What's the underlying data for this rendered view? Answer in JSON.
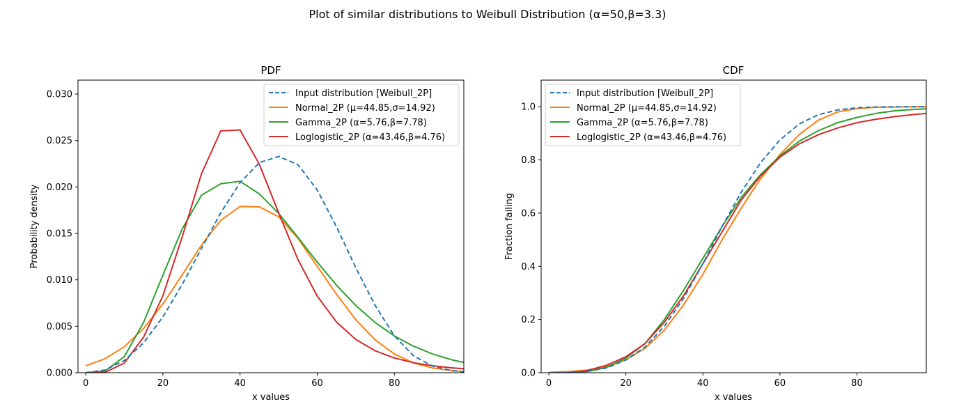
{
  "figure": {
    "suptitle": "Plot of similar distributions to Weibull Distribution (α=50,β=3.3)"
  },
  "series_styles": [
    {
      "color": "#1f77b4",
      "dash": "dashed"
    },
    {
      "color": "#ff7f0e",
      "dash": "solid"
    },
    {
      "color": "#2ca02c",
      "dash": "solid"
    },
    {
      "color": "#d62728",
      "dash": "solid"
    }
  ],
  "chart_data": [
    {
      "type": "line",
      "title": "PDF",
      "xlabel": "x values",
      "ylabel": "Probability density",
      "xlim": [
        -2,
        98
      ],
      "ylim": [
        0,
        0.0315
      ],
      "xticks": [
        "0",
        "20",
        "40",
        "60",
        "80"
      ],
      "xtick_values": [
        0,
        20,
        40,
        60,
        80
      ],
      "yticks": [
        "0.000",
        "0.005",
        "0.010",
        "0.015",
        "0.020",
        "0.025",
        "0.030"
      ],
      "ytick_values": [
        0,
        0.005,
        0.01,
        0.015,
        0.02,
        0.025,
        0.03
      ],
      "grid": false,
      "legend_position": "top-right",
      "x": [
        0,
        5,
        10,
        15,
        20,
        25,
        30,
        35,
        40,
        45,
        50,
        55,
        60,
        65,
        70,
        75,
        80,
        85,
        90,
        95,
        98
      ],
      "series": [
        {
          "name": "Input distribution [Weibull_2P]",
          "values": [
            0.0,
            0.00029,
            0.00131,
            0.00321,
            0.00601,
            0.0095,
            0.01338,
            0.01721,
            0.02046,
            0.02261,
            0.02328,
            0.0224,
            0.01968,
            0.0157,
            0.0113,
            0.00725,
            0.00397,
            0.0018,
            0.0007,
            0.00022,
            0.0001
          ]
        },
        {
          "name": "Normal_2P (μ=44.85,σ=14.92)",
          "values": [
            0.00074,
            0.00151,
            0.0028,
            0.00476,
            0.0074,
            0.01053,
            0.01373,
            0.0164,
            0.0179,
            0.01785,
            0.0168,
            0.01447,
            0.01145,
            0.00845,
            0.00571,
            0.00354,
            0.00202,
            0.00105,
            0.0005,
            0.00022,
            0.00012
          ]
        },
        {
          "name": "Gamma_2P (α=5.76,β=7.78)",
          "values": [
            0.0,
            0.00018,
            0.00173,
            0.00542,
            0.01051,
            0.01548,
            0.01911,
            0.02035,
            0.0206,
            0.01925,
            0.01715,
            0.01458,
            0.01191,
            0.00942,
            0.00724,
            0.00541,
            0.00396,
            0.00284,
            0.002,
            0.00138,
            0.0011
          ]
        },
        {
          "name": "Loglogistic_2P (α=43.46,β=4.76)",
          "values": [
            0.0,
            4e-05,
            0.00104,
            0.00383,
            0.00829,
            0.01462,
            0.02141,
            0.02603,
            0.02614,
            0.02243,
            0.01721,
            0.01219,
            0.00825,
            0.00546,
            0.00358,
            0.00236,
            0.00158,
            0.00107,
            0.00074,
            0.00052,
            0.00043
          ]
        }
      ]
    },
    {
      "type": "line",
      "title": "CDF",
      "xlabel": "x values",
      "ylabel": "Fraction failing",
      "xlim": [
        -2,
        98
      ],
      "ylim": [
        0,
        1.1
      ],
      "xticks": [
        "0",
        "20",
        "40",
        "60",
        "80"
      ],
      "xtick_values": [
        0,
        20,
        40,
        60,
        80
      ],
      "yticks": [
        "0.0",
        "0.2",
        "0.4",
        "0.6",
        "0.8",
        "1.0"
      ],
      "ytick_values": [
        0,
        0.2,
        0.4,
        0.6,
        0.8,
        1.0
      ],
      "grid": false,
      "legend_position": "top-left",
      "x": [
        0,
        5,
        10,
        15,
        20,
        25,
        30,
        35,
        40,
        45,
        50,
        55,
        60,
        65,
        70,
        75,
        80,
        85,
        90,
        95,
        98
      ],
      "series": [
        {
          "name": "Input distribution [Weibull_2P]",
          "values": [
            0.0,
            0.0005,
            0.005,
            0.018,
            0.048,
            0.097,
            0.175,
            0.28,
            0.41,
            0.55,
            0.68,
            0.79,
            0.875,
            0.935,
            0.97,
            0.988,
            0.996,
            0.999,
            1.0,
            1.0,
            1.0
          ]
        },
        {
          "name": "Normal_2P (μ=44.85,σ=14.92)",
          "values": [
            0.0013,
            0.004,
            0.01,
            0.023,
            0.048,
            0.092,
            0.16,
            0.255,
            0.37,
            0.5,
            0.62,
            0.73,
            0.82,
            0.895,
            0.95,
            0.98,
            0.993,
            0.998,
            0.999,
            1.0,
            1.0
          ]
        },
        {
          "name": "Gamma_2P (α=5.76,β=7.78)",
          "values": [
            0.0,
            0.0004,
            0.0045,
            0.02,
            0.055,
            0.11,
            0.2,
            0.31,
            0.43,
            0.55,
            0.66,
            0.745,
            0.815,
            0.87,
            0.91,
            0.94,
            0.96,
            0.975,
            0.985,
            0.99,
            0.992
          ]
        },
        {
          "name": "Loglogistic_2P (α=43.46,β=4.76)",
          "values": [
            0.0,
            0.0003,
            0.0086,
            0.028,
            0.06,
            0.11,
            0.19,
            0.29,
            0.41,
            0.53,
            0.65,
            0.74,
            0.81,
            0.86,
            0.895,
            0.92,
            0.94,
            0.953,
            0.963,
            0.971,
            0.975
          ]
        }
      ]
    }
  ]
}
